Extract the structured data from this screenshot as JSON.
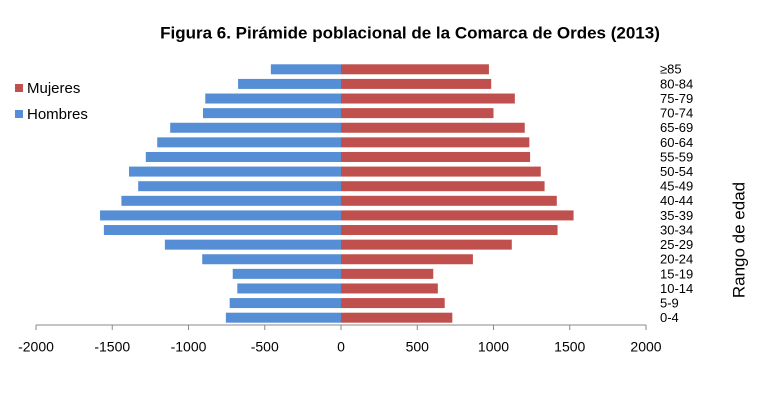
{
  "chart_data": {
    "type": "bar",
    "orientation": "horizontal",
    "title": "Figura 6. Pirámide poblacional de la Comarca de Ordes (2013)",
    "y_label": "Rango de edad",
    "categories": [
      "0-4",
      "5-9",
      "10-14",
      "15-19",
      "20-24",
      "25-29",
      "30-34",
      "35-39",
      "40-44",
      "45-49",
      "50-54",
      "55-59",
      "60-64",
      "65-69",
      "70-74",
      "75-79",
      "80-84",
      "≥85"
    ],
    "series": [
      {
        "name": "Mujeres",
        "color": "#c0504d",
        "values": [
          730,
          680,
          635,
          605,
          865,
          1120,
          1420,
          1525,
          1415,
          1335,
          1310,
          1240,
          1235,
          1205,
          1000,
          1140,
          985,
          970
        ]
      },
      {
        "name": "Hombres",
        "color": "#558ed5",
        "values": [
          -755,
          -730,
          -680,
          -710,
          -910,
          -1155,
          -1555,
          -1580,
          -1440,
          -1330,
          -1390,
          -1280,
          -1205,
          -1120,
          -905,
          -890,
          -675,
          -460
        ]
      }
    ],
    "xlim": [
      -2000,
      2000
    ],
    "xticks": [
      -2000,
      -1500,
      -1000,
      -500,
      0,
      500,
      1000,
      1500,
      2000
    ],
    "legend": "top-left"
  }
}
